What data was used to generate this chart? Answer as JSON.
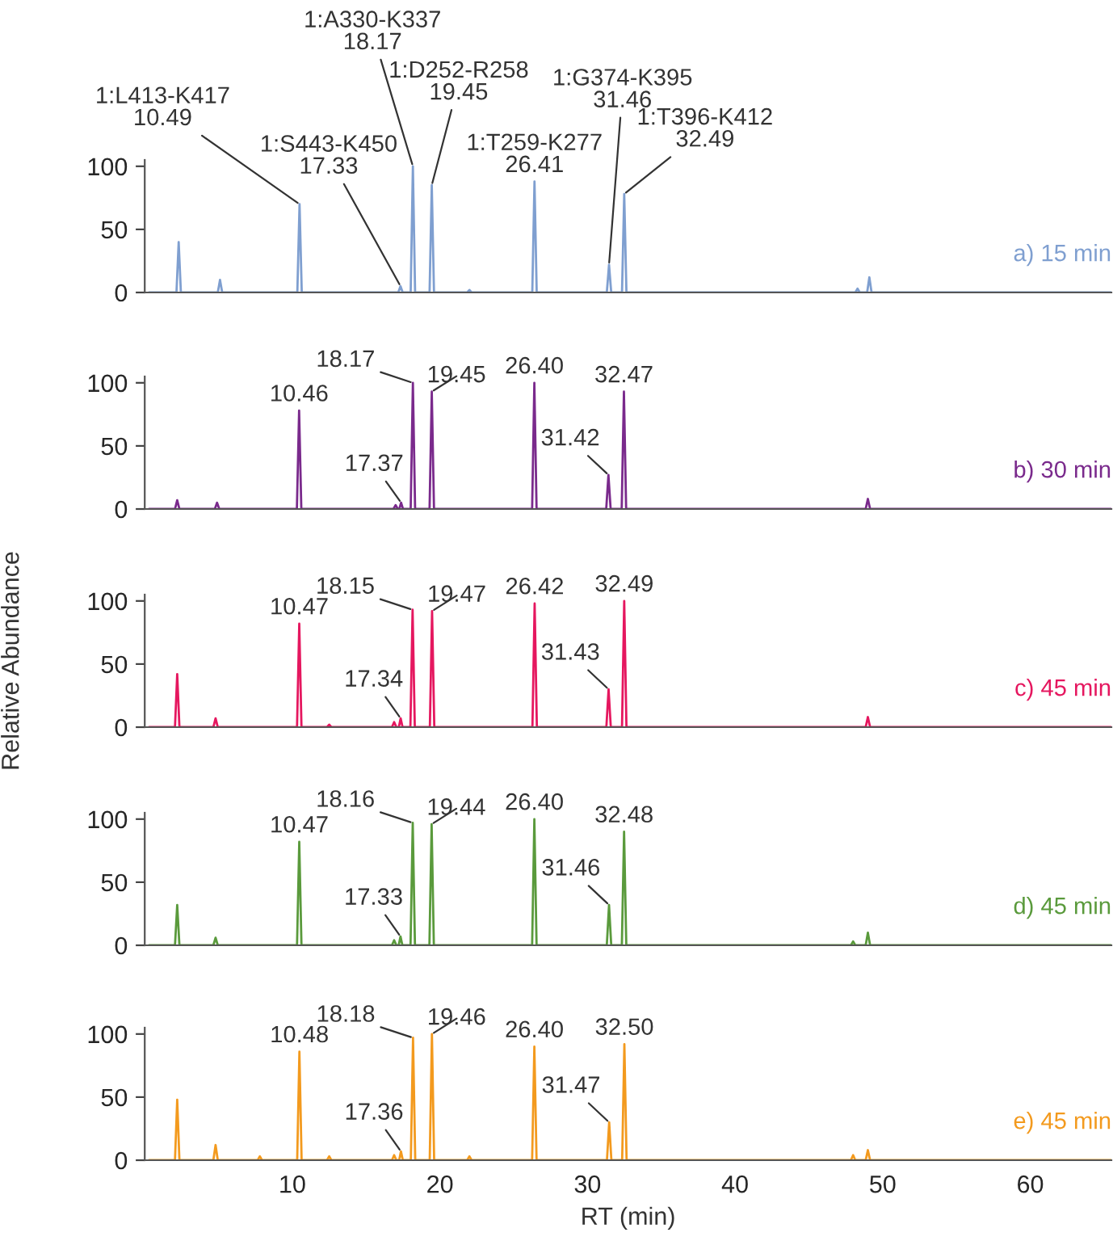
{
  "chart_data": [
    {
      "type": "line",
      "xlim": [
        0,
        65.5
      ],
      "xticks": [
        10,
        20,
        30,
        40,
        50,
        60
      ],
      "ylim": [
        0,
        105
      ],
      "yticks": [
        0,
        50,
        100
      ],
      "tick_labels": "y",
      "grid": false,
      "legend": false,
      "series": [
        {
          "name": "a) 15 min",
          "color": "#7f9fd0",
          "x": [
            0.3,
            2.15,
            2.3,
            2.45,
            4.95,
            5.1,
            5.25,
            10.34,
            10.49,
            10.64,
            17.18,
            17.33,
            17.48,
            18.02,
            18.17,
            18.32,
            19.3,
            19.45,
            19.6,
            21.85,
            22.0,
            22.15,
            26.26,
            26.41,
            26.56,
            31.31,
            31.46,
            31.61,
            32.34,
            32.49,
            32.64,
            48.15,
            48.3,
            48.45,
            48.95,
            49.1,
            49.25,
            65.5
          ],
          "values": [
            0,
            0,
            40,
            0,
            0,
            10,
            0,
            0,
            70,
            0,
            0,
            5,
            0,
            0,
            100,
            0,
            0,
            85,
            0,
            0,
            2,
            0,
            0,
            88,
            0,
            0,
            22,
            0,
            0,
            78,
            0,
            0,
            3,
            0,
            0,
            12,
            0,
            0
          ]
        }
      ],
      "annotations": [
        {
          "text": "1:L413-K417\n10.49",
          "x": 10.49,
          "y": 70
        },
        {
          "text": "1:S443-K450\n17.33",
          "x": 17.33,
          "y": 5
        },
        {
          "text": "1:A330-K337\n18.17",
          "x": 18.17,
          "y": 100
        },
        {
          "text": "1:D252-R258\n19.45",
          "x": 19.45,
          "y": 85
        },
        {
          "text": "1:T259-K277\n26.41",
          "x": 26.41,
          "y": 88
        },
        {
          "text": "1:G374-K395\n31.46",
          "x": 31.46,
          "y": 22
        },
        {
          "text": "1:T396-K412\n32.49",
          "x": 32.49,
          "y": 78
        }
      ]
    },
    {
      "type": "line",
      "xlim": [
        0,
        65.5
      ],
      "xticks": [
        10,
        20,
        30,
        40,
        50,
        60
      ],
      "ylim": [
        0,
        105
      ],
      "yticks": [
        0,
        50,
        100
      ],
      "tick_labels": "y",
      "grid": false,
      "legend": false,
      "series": [
        {
          "name": "b) 30 min",
          "color": "#7a2a8c",
          "x": [
            0.3,
            2.05,
            2.2,
            2.35,
            4.75,
            4.9,
            5.05,
            10.31,
            10.46,
            10.61,
            16.85,
            17.0,
            17.15,
            17.25,
            17.37,
            17.5,
            18.02,
            18.17,
            18.32,
            19.3,
            19.45,
            19.6,
            26.25,
            26.4,
            26.55,
            31.27,
            31.42,
            31.57,
            32.32,
            32.47,
            32.62,
            48.85,
            49.0,
            49.15,
            65.5
          ],
          "values": [
            0,
            0,
            7,
            0,
            0,
            5,
            0,
            0,
            78,
            0,
            0,
            3,
            0,
            0,
            5,
            0,
            0,
            100,
            0,
            0,
            93,
            0,
            0,
            100,
            0,
            0,
            27,
            0,
            0,
            93,
            0,
            0,
            8,
            0,
            0
          ]
        }
      ],
      "annotations": [
        {
          "text": "10.46",
          "x": 10.46,
          "y": 78
        },
        {
          "text": "17.37",
          "x": 17.37,
          "y": 5
        },
        {
          "text": "18.17",
          "x": 18.17,
          "y": 100
        },
        {
          "text": "19.45",
          "x": 19.45,
          "y": 93
        },
        {
          "text": "26.40",
          "x": 26.4,
          "y": 100
        },
        {
          "text": "31.42",
          "x": 31.42,
          "y": 27
        },
        {
          "text": "32.47",
          "x": 32.47,
          "y": 93
        }
      ]
    },
    {
      "type": "line",
      "xlim": [
        0,
        65.5
      ],
      "xticks": [
        10,
        20,
        30,
        40,
        50,
        60
      ],
      "ylim": [
        0,
        105
      ],
      "yticks": [
        0,
        50,
        100
      ],
      "tick_labels": "y",
      "grid": false,
      "legend": false,
      "ylabel": "Relative Abundance",
      "series": [
        {
          "name": "c) 45 min",
          "color": "#e5175f",
          "x": [
            0.3,
            2.05,
            2.2,
            2.35,
            4.65,
            4.8,
            4.95,
            10.32,
            10.47,
            10.62,
            12.35,
            12.5,
            12.65,
            16.75,
            16.9,
            17.05,
            17.22,
            17.34,
            17.47,
            18.0,
            18.15,
            18.3,
            19.32,
            19.47,
            19.62,
            26.27,
            26.42,
            26.57,
            31.28,
            31.43,
            31.58,
            32.34,
            32.49,
            32.64,
            48.85,
            49.0,
            49.15,
            65.5
          ],
          "values": [
            0,
            0,
            42,
            0,
            0,
            7,
            0,
            0,
            82,
            0,
            0,
            2,
            0,
            0,
            4,
            0,
            0,
            7,
            0,
            0,
            93,
            0,
            0,
            92,
            0,
            0,
            98,
            0,
            0,
            30,
            0,
            0,
            100,
            0,
            0,
            8,
            0,
            0
          ]
        }
      ],
      "annotations": [
        {
          "text": "10.47",
          "x": 10.47,
          "y": 82
        },
        {
          "text": "17.34",
          "x": 17.34,
          "y": 7
        },
        {
          "text": "18.15",
          "x": 18.15,
          "y": 93
        },
        {
          "text": "19.47",
          "x": 19.47,
          "y": 92
        },
        {
          "text": "26.42",
          "x": 26.42,
          "y": 98
        },
        {
          "text": "31.43",
          "x": 31.43,
          "y": 30
        },
        {
          "text": "32.49",
          "x": 32.49,
          "y": 100
        }
      ]
    },
    {
      "type": "line",
      "xlim": [
        0,
        65.5
      ],
      "xticks": [
        10,
        20,
        30,
        40,
        50,
        60
      ],
      "ylim": [
        0,
        105
      ],
      "yticks": [
        0,
        50,
        100
      ],
      "tick_labels": "y",
      "grid": false,
      "legend": false,
      "series": [
        {
          "name": "d) 45 min",
          "color": "#5a9a3c",
          "x": [
            0.3,
            2.05,
            2.2,
            2.35,
            4.65,
            4.8,
            4.95,
            10.32,
            10.47,
            10.62,
            16.75,
            16.9,
            17.05,
            17.21,
            17.33,
            17.46,
            18.01,
            18.16,
            18.31,
            19.29,
            19.44,
            19.59,
            26.25,
            26.4,
            26.55,
            31.31,
            31.46,
            31.61,
            32.33,
            32.48,
            32.63,
            47.85,
            48.0,
            48.15,
            48.85,
            49.0,
            49.15,
            65.5
          ],
          "values": [
            0,
            0,
            32,
            0,
            0,
            6,
            0,
            0,
            82,
            0,
            0,
            4,
            0,
            0,
            7,
            0,
            0,
            97,
            0,
            0,
            96,
            0,
            0,
            100,
            0,
            0,
            32,
            0,
            0,
            90,
            0,
            0,
            3,
            0,
            0,
            10,
            0,
            0
          ]
        }
      ],
      "annotations": [
        {
          "text": "10.47",
          "x": 10.47,
          "y": 82
        },
        {
          "text": "17.33",
          "x": 17.33,
          "y": 7
        },
        {
          "text": "18.16",
          "x": 18.16,
          "y": 97
        },
        {
          "text": "19.44",
          "x": 19.44,
          "y": 96
        },
        {
          "text": "26.40",
          "x": 26.4,
          "y": 100
        },
        {
          "text": "31.46",
          "x": 31.46,
          "y": 32
        },
        {
          "text": "32.48",
          "x": 32.48,
          "y": 90
        }
      ]
    },
    {
      "type": "line",
      "xlim": [
        0,
        65.5
      ],
      "xticks": [
        10,
        20,
        30,
        40,
        50,
        60
      ],
      "ylim": [
        0,
        105
      ],
      "yticks": [
        0,
        50,
        100
      ],
      "grid": false,
      "legend": false,
      "xlabel": "RT (min)",
      "series": [
        {
          "name": "e) 45 min",
          "color": "#f39a1e",
          "x": [
            0.3,
            2.05,
            2.2,
            2.35,
            4.65,
            4.8,
            4.95,
            7.65,
            7.8,
            7.95,
            10.33,
            10.48,
            10.63,
            12.35,
            12.5,
            12.65,
            16.75,
            16.9,
            17.05,
            17.24,
            17.36,
            17.49,
            18.03,
            18.18,
            18.33,
            19.31,
            19.46,
            19.61,
            21.85,
            22.0,
            22.15,
            26.25,
            26.4,
            26.55,
            31.32,
            31.47,
            31.62,
            32.35,
            32.5,
            32.65,
            47.85,
            48.0,
            48.15,
            48.85,
            49.0,
            49.15,
            65.5
          ],
          "values": [
            0,
            0,
            48,
            0,
            0,
            12,
            0,
            0,
            3,
            0,
            0,
            86,
            0,
            0,
            3,
            0,
            0,
            4,
            0,
            0,
            7,
            0,
            0,
            97,
            0,
            0,
            100,
            0,
            0,
            3,
            0,
            0,
            90,
            0,
            0,
            30,
            0,
            0,
            92,
            0,
            0,
            4,
            0,
            0,
            8,
            0,
            0
          ]
        }
      ],
      "annotations": [
        {
          "text": "10.48",
          "x": 10.48,
          "y": 86
        },
        {
          "text": "17.36",
          "x": 17.36,
          "y": 7
        },
        {
          "text": "18.18",
          "x": 18.18,
          "y": 97
        },
        {
          "text": "19.46",
          "x": 19.46,
          "y": 100
        },
        {
          "text": "26.40",
          "x": 26.4,
          "y": 90
        },
        {
          "text": "31.47",
          "x": 31.47,
          "y": 30
        },
        {
          "text": "32.50",
          "x": 32.5,
          "y": 92
        }
      ]
    }
  ]
}
